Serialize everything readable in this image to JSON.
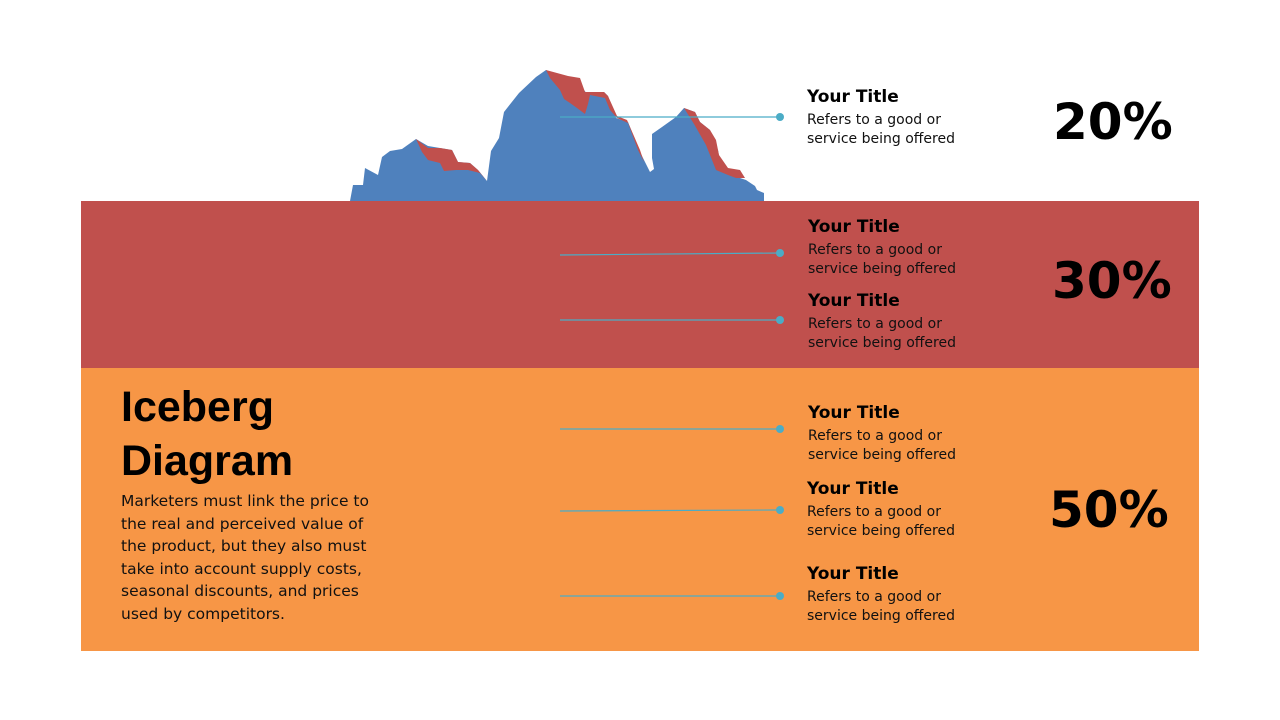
{
  "colors": {
    "ice": "#4f81bd",
    "ice_shadow": "#c0504d",
    "band_red": "#c0504d",
    "band_orange": "#f79646",
    "connector": "#4bacc6"
  },
  "heading": "Iceberg\nDiagram",
  "description": "Marketers must link the price to the real and perceived value of the product, but they also must take into account supply costs, seasonal discounts, and prices used by competitors.",
  "items": [
    {
      "title": "Your Title",
      "text": "Refers to a good or service being offered"
    },
    {
      "title": "Your Title",
      "text": "Refers to a good or service being offered"
    },
    {
      "title": "Your Title",
      "text": "Refers to a good or service being offered"
    },
    {
      "title": "Your Title",
      "text": "Refers to a good or service being offered"
    },
    {
      "title": "Your Title",
      "text": "Refers to a good or service being offered"
    },
    {
      "title": "Your Title",
      "text": "Refers to a good or service being offered"
    }
  ],
  "percentages": [
    "20%",
    "30%",
    "50%"
  ]
}
